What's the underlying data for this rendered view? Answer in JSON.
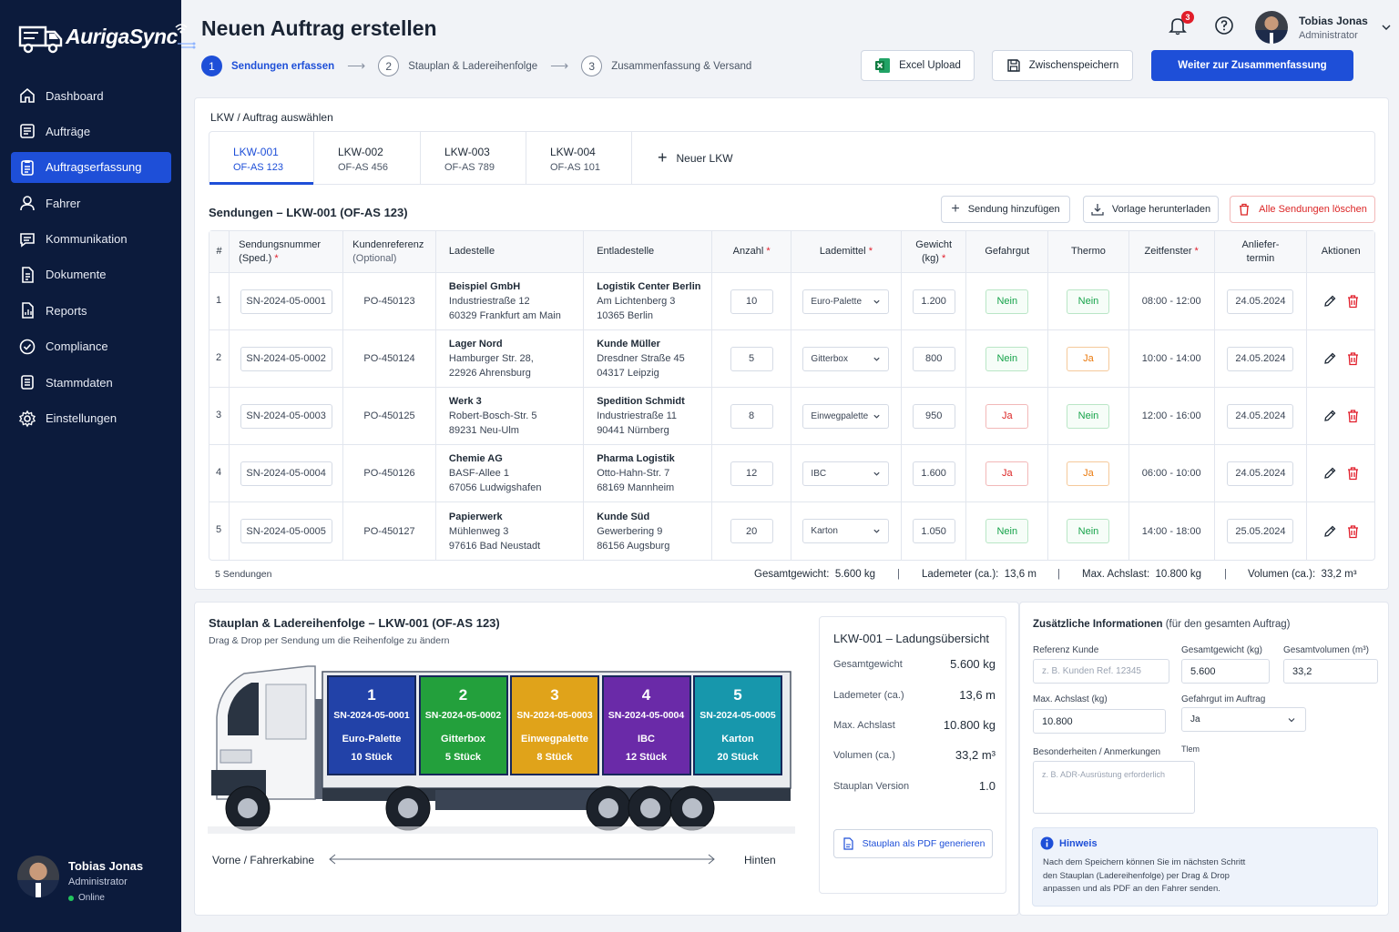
{
  "sidebar": {
    "logo": "AurigaSync",
    "items": [
      {
        "label": "Dashboard",
        "icon": "home-icon"
      },
      {
        "label": "Aufträge",
        "icon": "list-icon"
      },
      {
        "label": "Auftragserfassung",
        "icon": "clipboard-icon",
        "active": true
      },
      {
        "label": "Fahrer",
        "icon": "user-icon"
      },
      {
        "label": "Kommunikation",
        "icon": "chat-icon"
      },
      {
        "label": "Dokumente",
        "icon": "document-icon"
      },
      {
        "label": "Reports",
        "icon": "report-icon"
      },
      {
        "label": "Compliance",
        "icon": "shield-check-icon"
      },
      {
        "label": "Stammdaten",
        "icon": "database-icon"
      },
      {
        "label": "Einstellungen",
        "icon": "gear-icon"
      }
    ],
    "user": {
      "name": "Tobias Jonas",
      "role": "Administrator",
      "status": "Online"
    }
  },
  "header": {
    "title": "Neuen Auftrag erstellen",
    "steps": [
      {
        "num": "1",
        "label": "Sendungen erfassen",
        "active": true
      },
      {
        "num": "2",
        "label": "Stauplan & Ladereihenfolge"
      },
      {
        "num": "3",
        "label": "Zusammenfassung & Versand"
      }
    ],
    "excel_label": "Excel Upload",
    "save_label": "Zwischenspeichern",
    "next_label": "Weiter zur Zusammenfassung",
    "notification_count": "3",
    "user": {
      "name": "Tobias Jonas",
      "role": "Administrator"
    }
  },
  "truck_select": {
    "label": "LKW / Auftrag auswählen",
    "tabs": [
      {
        "name": "LKW-001",
        "order": "OF-AS 123",
        "active": true
      },
      {
        "name": "LKW-002",
        "order": "OF-AS 456"
      },
      {
        "name": "LKW-003",
        "order": "OF-AS 789"
      },
      {
        "name": "LKW-004",
        "order": "OF-AS 101"
      }
    ],
    "new_label": "Neuer LKW"
  },
  "shipments": {
    "title": "Sendungen – LKW-001 (OF-AS 123)",
    "add_label": "Sendung hinzufügen",
    "template_label": "Vorlage herunterladen",
    "delete_all_label": "Alle Sendungen löschen",
    "headers": {
      "idx": "#",
      "number": "Sendungsnummer",
      "number_sub": "(Sped.)",
      "ref": "Kundenreferenz",
      "ref_sub": "(Optional)",
      "load": "Ladestelle",
      "unload": "Entladestelle",
      "qty": "Anzahl",
      "carrier": "Lademittel",
      "weight": "Gewicht",
      "weight_sub": "(kg)",
      "hazard": "Gefahrgut",
      "thermo": "Thermo",
      "window": "Zeitfenster",
      "date": "Anliefer-",
      "date_sub": "termin",
      "actions": "Aktionen",
      "req_mark": "*"
    },
    "rows": [
      {
        "idx": "1",
        "number": "SN-2024-05-0001",
        "ref": "PO-450123",
        "load_name": "Beispiel GmbH",
        "load_street": "Industriestraße 12",
        "load_city": "60329 Frankfurt am Main",
        "unload_name": "Logistik Center Berlin",
        "unload_street": "Am Lichtenberg 3",
        "unload_city": "10365 Berlin",
        "qty": "10",
        "carrier": "Euro-Palette",
        "weight": "1.200",
        "hazard": "Nein",
        "thermo": "Nein",
        "window": "08:00 - 12:00",
        "date": "24.05.2024"
      },
      {
        "idx": "2",
        "number": "SN-2024-05-0002",
        "ref": "PO-450124",
        "load_name": "Lager Nord",
        "load_street": "Hamburger Str. 28,",
        "load_city": "22926 Ahrensburg",
        "unload_name": "Kunde Müller",
        "unload_street": "Dresdner Straße 45",
        "unload_city": "04317 Leipzig",
        "qty": "5",
        "carrier": "Gitterbox",
        "weight": "800",
        "hazard": "Nein",
        "thermo": "Ja",
        "window": "10:00 - 14:00",
        "date": "24.05.2024"
      },
      {
        "idx": "3",
        "number": "SN-2024-05-0003",
        "ref": "PO-450125",
        "load_name": "Werk 3",
        "load_street": "Robert-Bosch-Str. 5",
        "load_city": "89231 Neu-Ulm",
        "unload_name": "Spedition Schmidt",
        "unload_street": "Industriestraße 11",
        "unload_city": "90441 Nürnberg",
        "qty": "8",
        "carrier": "Einwegpalette",
        "weight": "950",
        "hazard": "Ja",
        "thermo": "Nein",
        "window": "12:00 - 16:00",
        "date": "24.05.2024"
      },
      {
        "idx": "4",
        "number": "SN-2024-05-0004",
        "ref": "PO-450126",
        "load_name": "Chemie AG",
        "load_street": "BASF-Allee 1",
        "load_city": "67056 Ludwigshafen",
        "unload_name": "Pharma Logistik",
        "unload_street": "Otto-Hahn-Str. 7",
        "unload_city": "68169 Mannheim",
        "qty": "12",
        "carrier": "IBC",
        "weight": "1.600",
        "hazard": "Ja",
        "thermo": "Ja",
        "window": "06:00 - 10:00",
        "date": "24.05.2024"
      },
      {
        "idx": "5",
        "number": "SN-2024-05-0005",
        "ref": "PO-450127",
        "load_name": "Papierwerk",
        "load_street": "Mühlenweg 3",
        "load_city": "97616 Bad Neustadt",
        "unload_name": "Kunde Süd",
        "unload_street": "Gewerbering 9",
        "unload_city": "86156 Augsburg",
        "qty": "20",
        "carrier": "Karton",
        "weight": "1.050",
        "hazard": "Nein",
        "thermo": "Nein",
        "window": "14:00 - 18:00",
        "date": "25.05.2024"
      }
    ],
    "footer": {
      "count": "5 Sendungen",
      "total_weight_label": "Gesamtgewicht:",
      "total_weight": "5.600 kg",
      "loading_meter_label": "Lademeter (ca.):",
      "loading_meter": "13,6 m",
      "axle_label": "Max. Achslast:",
      "axle": "10.800 kg",
      "volume_label": "Volumen (ca.):",
      "volume": "33,2 m³",
      "sep": "|"
    }
  },
  "stowage": {
    "title": "Stauplan & Ladereihenfolge – LKW-001 (OF-AS 123)",
    "subtitle": "Drag & Drop per Sendung um die Reihenfolge zu ändern",
    "segments": [
      {
        "n": "1",
        "number": "SN-2024-05-0001",
        "carrier": "Euro-Palette",
        "qty": "10 Stück",
        "color": "#2242a8"
      },
      {
        "n": "2",
        "number": "SN-2024-05-0002",
        "carrier": "Gitterbox",
        "qty": "5 Stück",
        "color": "#23a03c"
      },
      {
        "n": "3",
        "number": "SN-2024-05-0003",
        "carrier": "Einwegpalette",
        "qty": "8 Stück",
        "color": "#e0a31a"
      },
      {
        "n": "4",
        "number": "SN-2024-05-0004",
        "carrier": "IBC",
        "qty": "12 Stück",
        "color": "#6a2aa8"
      },
      {
        "n": "5",
        "number": "SN-2024-05-0005",
        "carrier": "Karton",
        "qty": "20 Stück",
        "color": "#1797ac"
      }
    ],
    "front_label": "Vorne / Fahrerkabine",
    "back_label": "Hinten"
  },
  "summary": {
    "title": "LKW-001 – Ladungsübersicht",
    "rows": [
      {
        "k": "Gesamtgewicht",
        "v": "5.600 kg"
      },
      {
        "k": "Lademeter (ca.)",
        "v": "13,6 m"
      },
      {
        "k": "Max. Achslast",
        "v": "10.800 kg"
      },
      {
        "k": "Volumen (ca.)",
        "v": "33,2 m³"
      },
      {
        "k": "Stauplan Version",
        "v": "1.0"
      }
    ],
    "pdf_label": "Stauplan als PDF generieren"
  },
  "extra": {
    "title": "Zusätzliche Informationen",
    "title_sub": "(für den gesamten Auftrag)",
    "ref_label": "Referenz Kunde",
    "ref_placeholder": "z. B. Kunden Ref. 12345",
    "weight_label": "Gesamtgewicht (kg)",
    "weight": "5.600",
    "volume_label": "Gesamtvolumen (m³)",
    "volume": "33,2",
    "axle_label": "Max. Achslast (kg)",
    "axle": "10.800",
    "hazard_label": "Gefahrgut im Auftrag",
    "hazard": "Ja",
    "notes_label": "Besonderheiten / Anmerkungen",
    "notes_extra": "Tlem",
    "notes_placeholder": "z. B. ADR-Ausrüstung erforderlich",
    "hint_title": "Hinweis",
    "hint_l1": "Nach dem Speichern können Sie im nächsten Schritt",
    "hint_l2": "den Stauplan (Ladereihenfolge) per Drag & Drop",
    "hint_l3": "anpassen und als PDF an den Fahrer senden."
  },
  "colors": {
    "accent": "#1e4fd8",
    "sidebar": "#0c1b3c",
    "danger": "#e11d2a"
  }
}
